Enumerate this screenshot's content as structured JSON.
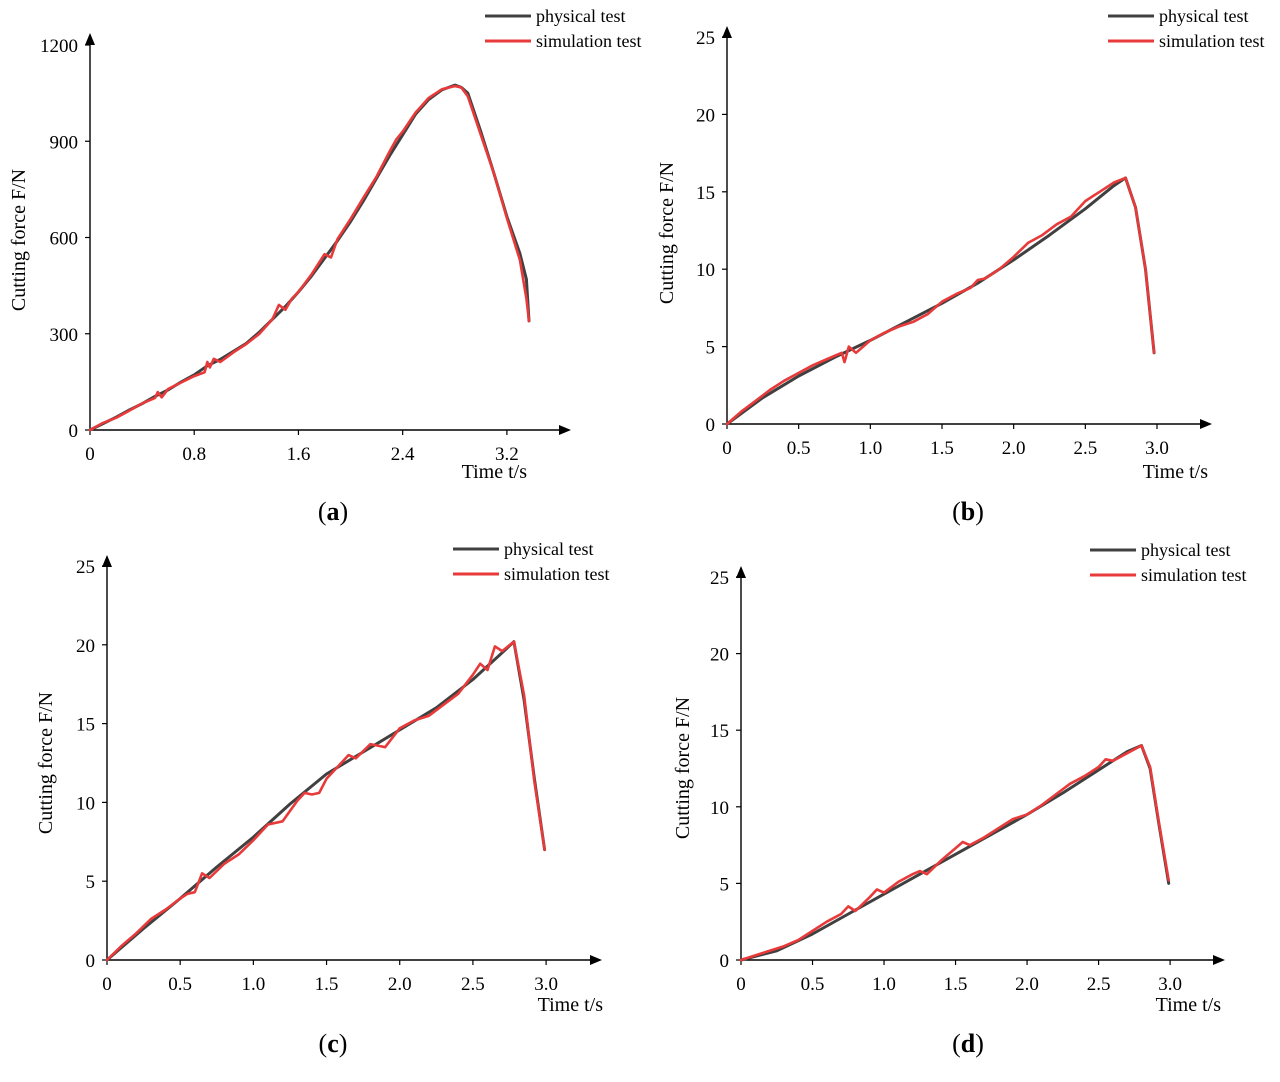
{
  "figure": {
    "background": "#ffffff",
    "colors": {
      "physical": "#404040",
      "simulation": "#e83a3a",
      "axis": "#000000"
    }
  },
  "chart_data": [
    {
      "panel": "(a)",
      "panel_letter": "a",
      "type": "line",
      "xlabel": "Time t/s",
      "ylabel": "Cutting force F/N",
      "xlim": [
        0,
        3.6
      ],
      "ylim": [
        0,
        1200
      ],
      "xticks": [
        0,
        0.8,
        1.6,
        2.4,
        3.2
      ],
      "xtick_labels": [
        "0",
        "0.8",
        "1.6",
        "2.4",
        "3.2"
      ],
      "yticks": [
        0,
        300,
        600,
        900,
        1200
      ],
      "ytick_labels": [
        "0",
        "300",
        "600",
        "900",
        "1200"
      ],
      "legend": [
        "physical test",
        "simulation test"
      ],
      "series": [
        {
          "name": "physical test",
          "color": "#404040",
          "x": [
            0,
            0.1,
            0.2,
            0.3,
            0.4,
            0.5,
            0.6,
            0.7,
            0.8,
            0.9,
            1.0,
            1.1,
            1.2,
            1.3,
            1.4,
            1.5,
            1.6,
            1.7,
            1.8,
            1.9,
            2.0,
            2.1,
            2.2,
            2.3,
            2.4,
            2.5,
            2.6,
            2.7,
            2.8,
            2.85,
            2.9,
            3.0,
            3.1,
            3.2,
            3.3,
            3.35,
            3.37
          ],
          "y": [
            0,
            20,
            40,
            62,
            82,
            105,
            125,
            150,
            172,
            200,
            220,
            245,
            270,
            305,
            345,
            385,
            430,
            480,
            535,
            590,
            650,
            715,
            785,
            855,
            920,
            985,
            1030,
            1060,
            1075,
            1068,
            1050,
            930,
            800,
            665,
            550,
            470,
            340
          ]
        },
        {
          "name": "simulation test",
          "color": "#e83a3a",
          "x": [
            0,
            0.1,
            0.2,
            0.3,
            0.4,
            0.5,
            0.52,
            0.55,
            0.6,
            0.7,
            0.8,
            0.88,
            0.9,
            0.92,
            0.95,
            1.0,
            1.1,
            1.2,
            1.3,
            1.4,
            1.45,
            1.5,
            1.55,
            1.6,
            1.7,
            1.8,
            1.85,
            1.9,
            2.0,
            2.1,
            2.2,
            2.3,
            2.35,
            2.4,
            2.5,
            2.55,
            2.6,
            2.7,
            2.8,
            2.85,
            2.9,
            3.0,
            3.1,
            3.2,
            3.3,
            3.35,
            3.37
          ],
          "y": [
            0,
            22,
            38,
            60,
            83,
            100,
            118,
            102,
            128,
            148,
            168,
            180,
            212,
            195,
            222,
            212,
            242,
            268,
            300,
            345,
            390,
            375,
            410,
            430,
            485,
            548,
            538,
            595,
            658,
            725,
            790,
            868,
            905,
            930,
            990,
            1012,
            1035,
            1062,
            1072,
            1068,
            1040,
            920,
            800,
            660,
            530,
            410,
            340
          ]
        }
      ]
    },
    {
      "panel": "(b)",
      "panel_letter": "b",
      "type": "line",
      "xlabel": "Time t/s",
      "ylabel": "Cutting force F/N",
      "xlim": [
        0,
        3.3
      ],
      "ylim": [
        0,
        25
      ],
      "xticks": [
        0,
        0.5,
        1.0,
        1.5,
        2.0,
        2.5,
        3.0
      ],
      "xtick_labels": [
        "0",
        "0.5",
        "1.0",
        "1.5",
        "2.0",
        "2.5",
        "3.0"
      ],
      "yticks": [
        0,
        5,
        10,
        15,
        20,
        25
      ],
      "ytick_labels": [
        "0",
        "5",
        "10",
        "15",
        "20",
        "25"
      ],
      "legend": [
        "physical test",
        "simulation test"
      ],
      "series": [
        {
          "name": "physical test",
          "color": "#404040",
          "x": [
            0,
            0.25,
            0.5,
            0.75,
            1.0,
            1.25,
            1.5,
            1.75,
            2.0,
            2.25,
            2.5,
            2.7,
            2.78,
            2.85,
            2.92,
            2.98
          ],
          "y": [
            0,
            1.7,
            3.1,
            4.3,
            5.4,
            6.6,
            7.8,
            9.1,
            10.6,
            12.2,
            13.9,
            15.4,
            15.9,
            14.0,
            10.0,
            4.6
          ]
        },
        {
          "name": "simulation test",
          "color": "#e83a3a",
          "x": [
            0,
            0.1,
            0.2,
            0.3,
            0.4,
            0.5,
            0.6,
            0.7,
            0.8,
            0.82,
            0.85,
            0.9,
            1.0,
            1.1,
            1.2,
            1.3,
            1.4,
            1.5,
            1.6,
            1.7,
            1.75,
            1.8,
            1.9,
            2.0,
            2.1,
            2.2,
            2.3,
            2.4,
            2.5,
            2.55,
            2.6,
            2.7,
            2.78,
            2.85,
            2.92,
            2.98
          ],
          "y": [
            0,
            0.8,
            1.5,
            2.2,
            2.8,
            3.3,
            3.8,
            4.2,
            4.6,
            4.0,
            5.0,
            4.6,
            5.4,
            5.9,
            6.3,
            6.6,
            7.1,
            7.9,
            8.4,
            8.8,
            9.3,
            9.4,
            10.0,
            10.8,
            11.7,
            12.2,
            12.9,
            13.4,
            14.4,
            14.7,
            15.0,
            15.6,
            15.9,
            14.0,
            10.0,
            4.6
          ]
        }
      ]
    },
    {
      "panel": "(c)",
      "panel_letter": "c",
      "type": "line",
      "xlabel": "Time t/s",
      "ylabel": "Cutting force F/N",
      "xlim": [
        0,
        3.3
      ],
      "ylim": [
        0,
        25
      ],
      "xticks": [
        0,
        0.5,
        1.0,
        1.5,
        2.0,
        2.5,
        3.0
      ],
      "xtick_labels": [
        "0",
        "0.5",
        "1.0",
        "1.5",
        "2.0",
        "2.5",
        "3.0"
      ],
      "yticks": [
        0,
        5,
        10,
        15,
        20,
        25
      ],
      "ytick_labels": [
        "0",
        "5",
        "10",
        "15",
        "20",
        "25"
      ],
      "legend": [
        "physical test",
        "simulation test"
      ],
      "series": [
        {
          "name": "physical test",
          "color": "#404040",
          "x": [
            0,
            0.25,
            0.5,
            0.75,
            1.0,
            1.25,
            1.5,
            1.75,
            2.0,
            2.25,
            2.5,
            2.7,
            2.78,
            2.85,
            2.92,
            2.99
          ],
          "y": [
            0,
            2.0,
            3.9,
            5.9,
            7.8,
            9.9,
            11.8,
            13.2,
            14.6,
            16.0,
            17.8,
            19.5,
            20.2,
            16.5,
            11.5,
            7.0
          ]
        },
        {
          "name": "simulation test",
          "color": "#e83a3a",
          "x": [
            0,
            0.1,
            0.2,
            0.3,
            0.4,
            0.5,
            0.55,
            0.6,
            0.65,
            0.7,
            0.8,
            0.9,
            1.0,
            1.1,
            1.2,
            1.3,
            1.35,
            1.4,
            1.45,
            1.5,
            1.6,
            1.65,
            1.7,
            1.8,
            1.9,
            2.0,
            2.1,
            2.2,
            2.3,
            2.4,
            2.5,
            2.55,
            2.6,
            2.65,
            2.7,
            2.78,
            2.85,
            2.92,
            2.99
          ],
          "y": [
            0,
            0.9,
            1.7,
            2.6,
            3.2,
            3.9,
            4.2,
            4.3,
            5.5,
            5.2,
            6.1,
            6.7,
            7.6,
            8.6,
            8.8,
            10.1,
            10.6,
            10.5,
            10.6,
            11.5,
            12.5,
            13.0,
            12.8,
            13.7,
            13.5,
            14.7,
            15.2,
            15.5,
            16.2,
            16.9,
            18.1,
            18.8,
            18.4,
            19.9,
            19.6,
            20.2,
            16.8,
            11.3,
            7.0
          ]
        }
      ]
    },
    {
      "panel": "(d)",
      "panel_letter": "d",
      "type": "line",
      "xlabel": "Time t/s",
      "ylabel": "Cutting force F/N",
      "xlim": [
        0,
        3.3
      ],
      "ylim": [
        0,
        25
      ],
      "xticks": [
        0,
        0.5,
        1.0,
        1.5,
        2.0,
        2.5,
        3.0
      ],
      "xtick_labels": [
        "0",
        "0.5",
        "1.0",
        "1.5",
        "2.0",
        "2.5",
        "3.0"
      ],
      "yticks": [
        0,
        5,
        10,
        15,
        20,
        25
      ],
      "ytick_labels": [
        "0",
        "5",
        "10",
        "15",
        "20",
        "25"
      ],
      "legend": [
        "physical test",
        "simulation test"
      ],
      "series": [
        {
          "name": "physical test",
          "color": "#404040",
          "x": [
            0,
            0.25,
            0.5,
            0.75,
            1.0,
            1.25,
            1.5,
            1.75,
            2.0,
            2.25,
            2.5,
            2.7,
            2.8,
            2.86,
            2.92,
            2.99
          ],
          "y": [
            0,
            0.6,
            1.7,
            3.0,
            4.3,
            5.6,
            6.9,
            8.2,
            9.5,
            10.9,
            12.4,
            13.6,
            14.0,
            12.5,
            9.0,
            5.0
          ]
        },
        {
          "name": "simulation test",
          "color": "#e83a3a",
          "x": [
            0,
            0.1,
            0.2,
            0.3,
            0.4,
            0.5,
            0.6,
            0.7,
            0.75,
            0.8,
            0.9,
            0.95,
            1.0,
            1.1,
            1.2,
            1.25,
            1.3,
            1.4,
            1.5,
            1.55,
            1.6,
            1.7,
            1.8,
            1.9,
            2.0,
            2.1,
            2.2,
            2.3,
            2.4,
            2.5,
            2.55,
            2.6,
            2.7,
            2.8,
            2.86,
            2.92,
            2.99
          ],
          "y": [
            0,
            0.3,
            0.6,
            0.9,
            1.3,
            1.9,
            2.5,
            3.0,
            3.5,
            3.2,
            4.1,
            4.6,
            4.4,
            5.1,
            5.6,
            5.8,
            5.6,
            6.5,
            7.3,
            7.7,
            7.5,
            8.0,
            8.6,
            9.2,
            9.5,
            10.1,
            10.8,
            11.5,
            12.0,
            12.6,
            13.1,
            13.0,
            13.5,
            14.0,
            12.6,
            9.1,
            5.2
          ]
        }
      ]
    }
  ]
}
